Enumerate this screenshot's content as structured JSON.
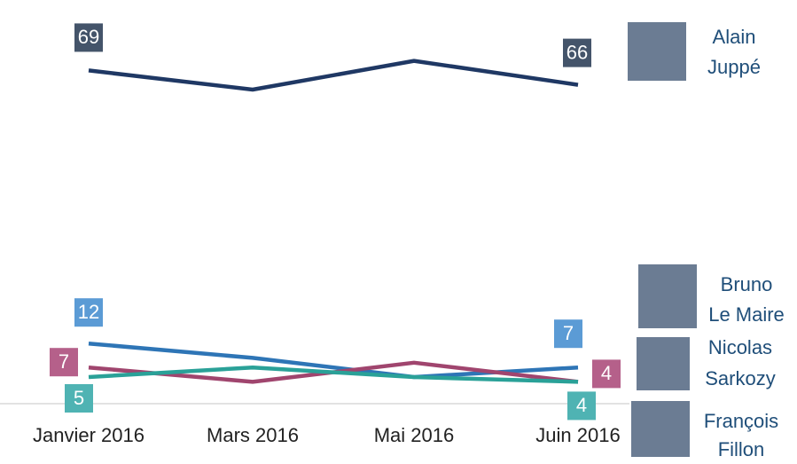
{
  "chart_data": {
    "type": "line",
    "categories": [
      "Janvier 2016",
      "Mars 2016",
      "Mai 2016",
      "Juin 2016"
    ],
    "ylim": [
      0,
      75
    ],
    "series": [
      {
        "name": "Alain Juppé",
        "color": "#1f3864",
        "label_color": "#44546a",
        "values": [
          69,
          65,
          71,
          66
        ]
      },
      {
        "name": "Bruno Le Maire",
        "color": "#2e75b6",
        "label_color": "#5b9bd5",
        "values": [
          12,
          9,
          5,
          7
        ]
      },
      {
        "name": "Nicolas Sarkozy",
        "color": "#a0456e",
        "label_color": "#b5608a",
        "values": [
          7,
          4,
          8,
          4
        ]
      },
      {
        "name": "François Fillon",
        "color": "#2aa198",
        "label_color": "#4fb3b3",
        "values": [
          5,
          7,
          5,
          4
        ]
      }
    ]
  }
}
